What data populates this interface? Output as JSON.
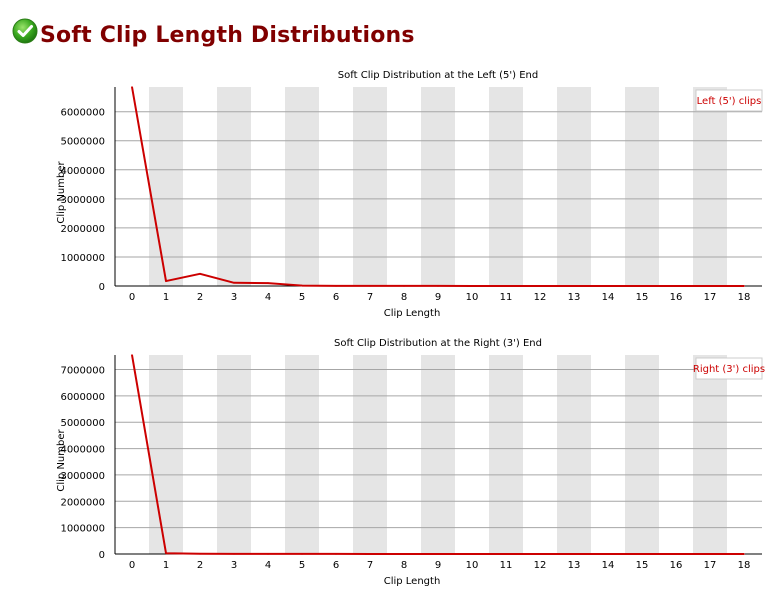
{
  "page": {
    "title": "Soft Clip Length Distributions",
    "status_icon": "checkmark-ok-icon"
  },
  "chart_data": [
    {
      "type": "line",
      "title": "Soft Clip Distribution at the Left (5') End",
      "xlabel": "Clip Length",
      "ylabel": "Clip Number",
      "x": [
        0,
        1,
        2,
        3,
        4,
        5,
        6,
        7,
        8,
        9,
        10,
        11,
        12,
        13,
        14,
        15,
        16,
        17,
        18
      ],
      "series": [
        {
          "name": "Left (5') clips",
          "color": "#cc0000",
          "values": [
            6850000,
            170000,
            420000,
            110000,
            100000,
            15000,
            5000,
            4000,
            3000,
            2500,
            2000,
            1500,
            1200,
            1000,
            900,
            800,
            700,
            600,
            500
          ]
        }
      ],
      "yticks": [
        0,
        1000000,
        2000000,
        3000000,
        4000000,
        5000000,
        6000000
      ],
      "ylim": [
        0,
        6850000
      ],
      "legend": "top-right",
      "band_color": "#e5e5e5",
      "grid": true
    },
    {
      "type": "line",
      "title": "Soft Clip Distribution at the Right (3') End",
      "xlabel": "Clip Length",
      "ylabel": "Clip Number",
      "x": [
        0,
        1,
        2,
        3,
        4,
        5,
        6,
        7,
        8,
        9,
        10,
        11,
        12,
        13,
        14,
        15,
        16,
        17,
        18
      ],
      "series": [
        {
          "name": "Right (3') clips",
          "color": "#cc0000",
          "values": [
            7550000,
            30000,
            8000,
            5000,
            4000,
            3000,
            2500,
            2000,
            1500,
            1200,
            1000,
            900,
            800,
            700,
            600,
            500,
            400,
            300,
            200
          ]
        }
      ],
      "yticks": [
        0,
        1000000,
        2000000,
        3000000,
        4000000,
        5000000,
        6000000,
        7000000
      ],
      "ylim": [
        0,
        7550000
      ],
      "legend": "top-right",
      "band_color": "#e5e5e5",
      "grid": true
    }
  ]
}
